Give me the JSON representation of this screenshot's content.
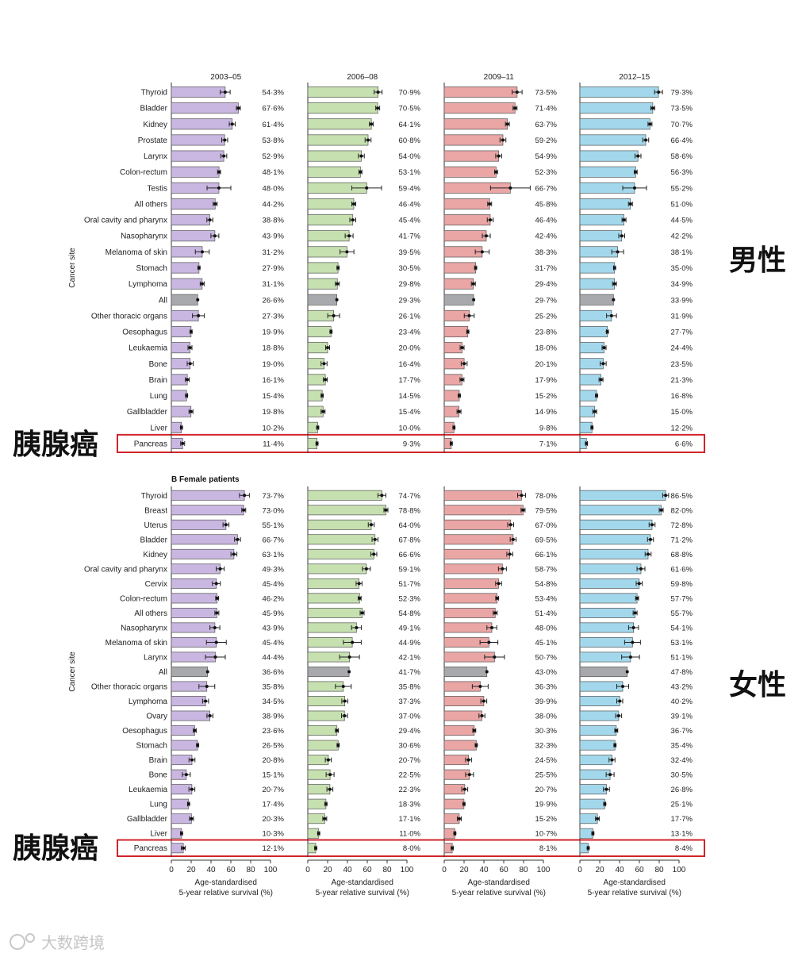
{
  "figure": {
    "male_label": "男性",
    "female_label": "女性",
    "pancreas_label": "胰腺癌",
    "watermark": "大数跨境"
  },
  "chart_data": [
    {
      "type": "bar",
      "panel": "male",
      "title": "",
      "ylabel": "Cancer site",
      "xlabel": "Age-standardised\n5-year relative survival (%)",
      "xlim": [
        0,
        100
      ],
      "xticks": [
        0,
        20,
        40,
        60,
        80,
        100
      ],
      "highlight_category": "Pancreas",
      "categories": [
        "Thyroid",
        "Bladder",
        "Kidney",
        "Prostate",
        "Larynx",
        "Colon-rectum",
        "Testis",
        "All others",
        "Oral cavity and pharynx",
        "Nasopharynx",
        "Melanoma of skin",
        "Stomach",
        "Lymphoma",
        "All",
        "Other thoracic organs",
        "Oesophagus",
        "Leukaemia",
        "Bone",
        "Brain",
        "Lung",
        "Gallbladder",
        "Liver",
        "Pancreas"
      ],
      "series": [
        {
          "name": "2003–05",
          "color": "#c9b7e1",
          "values": [
            54.3,
            67.6,
            61.4,
            53.8,
            52.9,
            48.1,
            48.0,
            44.2,
            38.8,
            43.9,
            31.2,
            27.9,
            31.1,
            26.6,
            27.3,
            19.9,
            18.8,
            19.0,
            16.1,
            15.4,
            19.8,
            10.2,
            11.4
          ],
          "labels": [
            "54·3%",
            "67·6%",
            "61·4%",
            "53·8%",
            "52·9%",
            "48·1%",
            "48·0%",
            "44·2%",
            "38·8%",
            "43·9%",
            "31·2%",
            "27·9%",
            "31·1%",
            "26·6%",
            "27·3%",
            "19·9%",
            "18·8%",
            "19·0%",
            "16·1%",
            "15·4%",
            "19·8%",
            "10·2%",
            "11·4%"
          ],
          "err": [
            5,
            2,
            3,
            3,
            3,
            1.5,
            12,
            2,
            3,
            4,
            7,
            1,
            2,
            0,
            6,
            1,
            2,
            3,
            2,
            1,
            2,
            1,
            2
          ]
        },
        {
          "name": "2006–08",
          "color": "#c6e0b0",
          "values": [
            70.9,
            70.5,
            64.1,
            60.8,
            54.0,
            53.1,
            59.4,
            46.4,
            45.4,
            41.7,
            39.5,
            30.5,
            29.8,
            29.3,
            26.1,
            23.4,
            20.0,
            16.4,
            17.7,
            14.5,
            15.4,
            10.0,
            9.3
          ],
          "labels": [
            "70·9%",
            "70·5%",
            "64·1%",
            "60·8%",
            "54·0%",
            "53·1%",
            "59·4%",
            "46·4%",
            "45·4%",
            "41·7%",
            "39·5%",
            "30·5%",
            "29·8%",
            "29·3%",
            "26·1%",
            "23·4%",
            "20·0%",
            "16·4%",
            "17·7%",
            "14·5%",
            "15·4%",
            "10·0%",
            "9·3%"
          ],
          "err": [
            4,
            2,
            2,
            3,
            3,
            1.5,
            15,
            2,
            3,
            4,
            7,
            1,
            2,
            0,
            6,
            1,
            2,
            3,
            2,
            1,
            2,
            1,
            1
          ]
        },
        {
          "name": "2009–11",
          "color": "#eaa5a5",
          "values": [
            73.5,
            71.4,
            63.7,
            59.2,
            54.9,
            52.3,
            66.7,
            45.8,
            46.4,
            42.4,
            38.3,
            31.7,
            29.4,
            29.7,
            25.2,
            23.8,
            18.0,
            20.1,
            17.9,
            15.2,
            14.9,
            9.8,
            7.1
          ],
          "labels": [
            "73·5%",
            "71·4%",
            "63·7%",
            "59·2%",
            "54·9%",
            "52·3%",
            "66·7%",
            "45·8%",
            "46·4%",
            "42·4%",
            "38·3%",
            "31·7%",
            "29·4%",
            "29·7%",
            "25·2%",
            "23·8%",
            "18·0%",
            "20·1%",
            "17·9%",
            "15·2%",
            "14·9%",
            "9·8%",
            "7·1%"
          ],
          "err": [
            5,
            2,
            2,
            3,
            3,
            1.5,
            20,
            2,
            3,
            4,
            7,
            1,
            2,
            0,
            5,
            1,
            2,
            3,
            2,
            1,
            2,
            1,
            1
          ]
        },
        {
          "name": "2012–15",
          "color": "#a3d8ec",
          "values": [
            79.3,
            73.5,
            70.7,
            66.4,
            58.6,
            56.3,
            55.2,
            51.0,
            44.5,
            42.2,
            38.1,
            35.0,
            34.9,
            33.9,
            31.9,
            27.7,
            24.4,
            23.5,
            21.3,
            16.8,
            15.0,
            12.2,
            6.6
          ],
          "labels": [
            "79·3%",
            "73·5%",
            "70·7%",
            "66·4%",
            "58·6%",
            "56·3%",
            "55·2%",
            "51·0%",
            "44·5%",
            "42·2%",
            "38·1%",
            "35·0%",
            "34·9%",
            "33·9%",
            "31·9%",
            "27·7%",
            "24·4%",
            "23·5%",
            "21·3%",
            "16·8%",
            "15·0%",
            "12·2%",
            "6·6%"
          ],
          "err": [
            4,
            2,
            2,
            3,
            3,
            1.5,
            12,
            2,
            2,
            3,
            6,
            1,
            2,
            0,
            5,
            1,
            2,
            3,
            2,
            1,
            2,
            1,
            1
          ]
        }
      ]
    },
    {
      "type": "bar",
      "panel": "female",
      "title": "B  Female patients",
      "ylabel": "Cancer site",
      "xlabel": "Age-standardised\n5-year relative survival (%)",
      "xlim": [
        0,
        100
      ],
      "xticks": [
        0,
        20,
        40,
        60,
        80,
        100
      ],
      "highlight_category": "Pancreas",
      "categories": [
        "Thyroid",
        "Breast",
        "Uterus",
        "Bladder",
        "Kidney",
        "Oral cavity and pharynx",
        "Cervix",
        "Colon-rectum",
        "All others",
        "Nasopharynx",
        "Melanoma of skin",
        "Larynx",
        "All",
        "Other thoracic organs",
        "Lymphoma",
        "Ovary",
        "Oesophagus",
        "Stomach",
        "Brain",
        "Bone",
        "Leukaemia",
        "Lung",
        "Gallbladder",
        "Liver",
        "Pancreas"
      ],
      "series": [
        {
          "name": "2003–05",
          "color": "#c9b7e1",
          "values": [
            73.7,
            73.0,
            55.1,
            66.7,
            63.1,
            49.3,
            45.4,
            46.2,
            45.9,
            43.9,
            45.4,
            44.4,
            36.6,
            35.8,
            34.5,
            38.9,
            23.6,
            26.5,
            20.8,
            15.1,
            20.7,
            17.4,
            20.3,
            10.3,
            12.1
          ],
          "labels": [
            "73·7%",
            "73·0%",
            "55·1%",
            "66·7%",
            "63·1%",
            "49·3%",
            "45·4%",
            "46·2%",
            "45·9%",
            "43·9%",
            "45·4%",
            "44·4%",
            "36·6%",
            "35·8%",
            "34·5%",
            "38·9%",
            "23·6%",
            "26·5%",
            "20·8%",
            "15·1%",
            "20·7%",
            "17·4%",
            "20·3%",
            "10·3%",
            "12·1%"
          ],
          "err": [
            5,
            2,
            3,
            3,
            3,
            4,
            4,
            1.5,
            2,
            5,
            10,
            10,
            0,
            8,
            3,
            3,
            1.5,
            1,
            3,
            4,
            3,
            1,
            2,
            1,
            2
          ]
        },
        {
          "name": "2006–08",
          "color": "#c6e0b0",
          "values": [
            74.7,
            78.8,
            64.0,
            67.8,
            66.6,
            59.1,
            51.7,
            52.3,
            54.8,
            49.1,
            44.9,
            42.1,
            41.7,
            35.8,
            37.3,
            37.0,
            29.4,
            30.6,
            20.7,
            22.5,
            22.3,
            18.3,
            17.1,
            11.0,
            8.0
          ],
          "labels": [
            "74·7%",
            "78·8%",
            "64·0%",
            "67·8%",
            "66·6%",
            "59·1%",
            "51·7%",
            "52·3%",
            "54·8%",
            "49·1%",
            "44·9%",
            "42·1%",
            "41·7%",
            "35·8%",
            "37·3%",
            "37·0%",
            "29·4%",
            "30·6%",
            "20·7%",
            "22·5%",
            "22·3%",
            "18·3%",
            "17·1%",
            "11·0%",
            "8·0%"
          ],
          "err": [
            4,
            2,
            3,
            3,
            3,
            4,
            3,
            1.5,
            2,
            5,
            9,
            10,
            0,
            8,
            3,
            3,
            1.5,
            1,
            3,
            4,
            3,
            1,
            2,
            1,
            1
          ]
        },
        {
          "name": "2009–11",
          "color": "#eaa5a5",
          "values": [
            78.0,
            79.5,
            67.0,
            69.5,
            66.1,
            58.7,
            54.8,
            53.4,
            51.4,
            48.0,
            45.1,
            50.7,
            43.0,
            36.3,
            39.9,
            38.0,
            30.3,
            32.3,
            24.5,
            25.5,
            20.7,
            19.9,
            15.2,
            10.7,
            8.1
          ],
          "labels": [
            "78·0%",
            "79·5%",
            "67·0%",
            "69·5%",
            "66·1%",
            "58·7%",
            "54·8%",
            "53·4%",
            "51·4%",
            "48·0%",
            "45·1%",
            "50·7%",
            "43·0%",
            "36·3%",
            "39·9%",
            "38·0%",
            "30·3%",
            "32·3%",
            "24·5%",
            "25·5%",
            "20·7%",
            "19·9%",
            "15·2%",
            "10·7%",
            "8·1%"
          ],
          "err": [
            4,
            2,
            3,
            3,
            3,
            4,
            3,
            1.5,
            2,
            5,
            9,
            10,
            0,
            8,
            3,
            3,
            1.5,
            1,
            3,
            4,
            3,
            1,
            2,
            1,
            1
          ]
        },
        {
          "name": "2012–15",
          "color": "#a3d8ec",
          "values": [
            86.5,
            82.0,
            72.8,
            71.2,
            68.8,
            61.6,
            59.8,
            57.7,
            55.7,
            54.1,
            53.1,
            51.1,
            47.8,
            43.2,
            40.2,
            39.1,
            36.7,
            35.4,
            32.4,
            30.5,
            26.8,
            25.1,
            17.7,
            13.1,
            8.4
          ],
          "labels": [
            "86·5%",
            "82·0%",
            "72·8%",
            "71·2%",
            "68·8%",
            "61·6%",
            "59·8%",
            "57·7%",
            "55·7%",
            "54·1%",
            "53·1%",
            "51·1%",
            "47·8%",
            "43·2%",
            "40·2%",
            "39·1%",
            "36·7%",
            "35·4%",
            "32·4%",
            "30·5%",
            "26·8%",
            "25·1%",
            "17·7%",
            "13·1%",
            "8·4%"
          ],
          "err": [
            3,
            2,
            3,
            3,
            3,
            4,
            3,
            1.5,
            2,
            5,
            8,
            9,
            0,
            6,
            3,
            3,
            1.5,
            1,
            3,
            4,
            3,
            1,
            2,
            1,
            1
          ]
        }
      ]
    }
  ]
}
